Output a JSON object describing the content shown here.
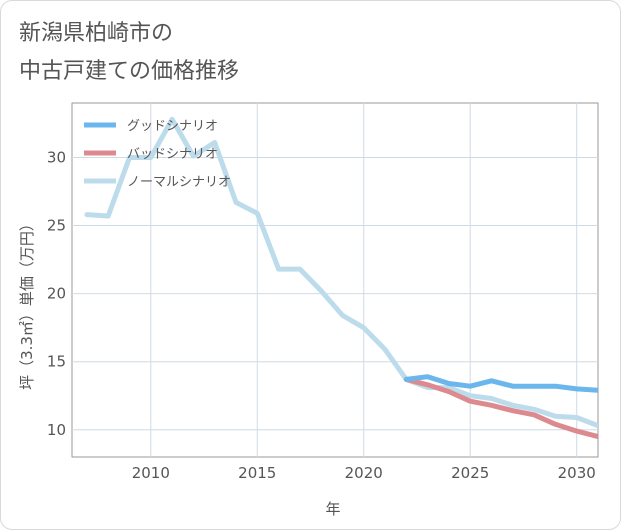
{
  "title_lines": [
    "新潟県柏崎市の",
    "中古戸建ての価格推移"
  ],
  "chart_data": {
    "type": "line",
    "xlabel": "年",
    "ylabel": "坪（3.3㎡）単価（万円）",
    "xlim": [
      2006.3,
      2031
    ],
    "ylim": [
      8,
      34
    ],
    "xticks": [
      2010,
      2015,
      2020,
      2025,
      2030
    ],
    "yticks": [
      10,
      15,
      20,
      25,
      30
    ],
    "grid": true,
    "legend_position": "top-left",
    "series": [
      {
        "name": "グッドシナリオ",
        "color": "#6bb6ec",
        "x": [
          2022,
          2023,
          2024,
          2025,
          2026,
          2027,
          2028,
          2029,
          2030,
          2031
        ],
        "values": [
          13.7,
          13.9,
          13.4,
          13.2,
          13.6,
          13.2,
          13.2,
          13.2,
          13.0,
          12.9
        ]
      },
      {
        "name": "バッドシナリオ",
        "color": "#dc8a8f",
        "x": [
          2022,
          2023,
          2024,
          2025,
          2026,
          2027,
          2028,
          2029,
          2030,
          2031
        ],
        "values": [
          13.7,
          13.3,
          12.8,
          12.1,
          11.8,
          11.4,
          11.1,
          10.4,
          9.9,
          9.5
        ]
      },
      {
        "name": "ノーマルシナリオ",
        "color": "#bcdcec",
        "x": [
          2007,
          2008,
          2009,
          2010,
          2011,
          2012,
          2013,
          2014,
          2015,
          2016,
          2017,
          2018,
          2019,
          2020,
          2021,
          2022,
          2023,
          2024,
          2025,
          2026,
          2027,
          2028,
          2029,
          2030,
          2031
        ],
        "values": [
          25.8,
          25.7,
          30.0,
          30.0,
          32.8,
          30.1,
          31.1,
          26.7,
          25.9,
          21.8,
          21.8,
          20.2,
          18.4,
          17.5,
          15.9,
          13.7,
          13.1,
          13.1,
          12.5,
          12.3,
          11.8,
          11.5,
          11.0,
          10.9,
          10.3
        ]
      }
    ]
  }
}
